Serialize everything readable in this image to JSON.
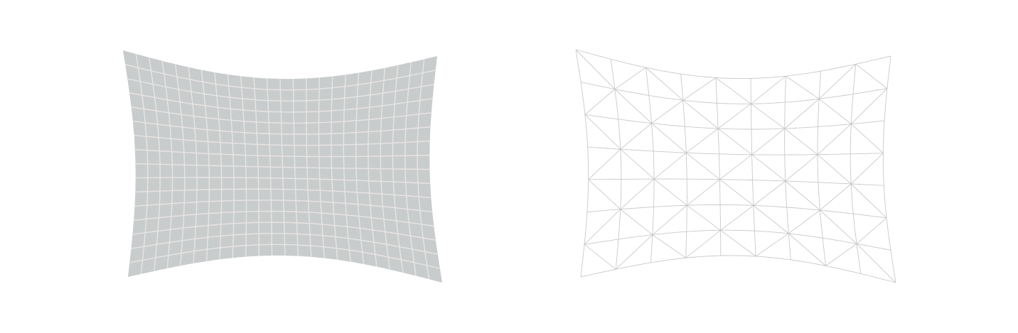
{
  "textured_panel": {
    "fill_color": "#c8cccc",
    "grid_line_color": "#e9e5e3",
    "grid_columns": 24,
    "grid_rows": 16
  },
  "wireframe_panel": {
    "background_color": "#ffffff",
    "line_color": "#c9c9c9",
    "mesh_columns": 9,
    "mesh_rows": 7
  }
}
